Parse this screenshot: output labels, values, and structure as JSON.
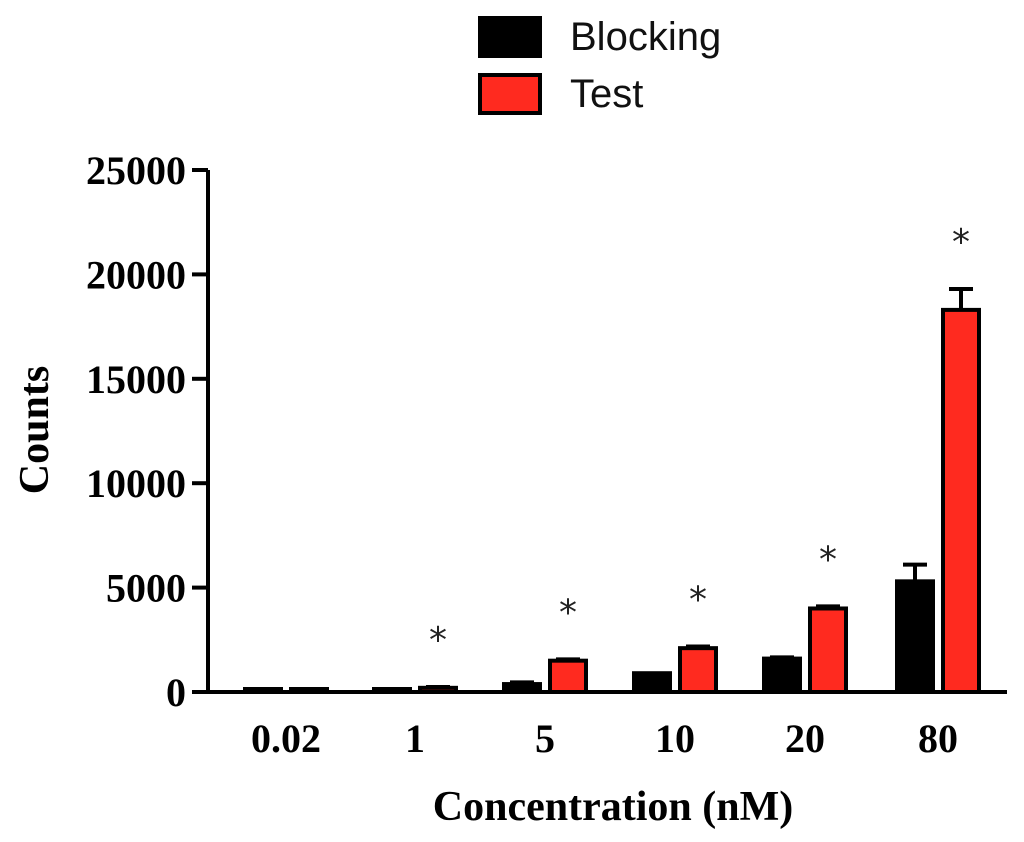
{
  "chart_data": {
    "type": "bar",
    "title": "",
    "xlabel": "Concentration (nM)",
    "ylabel": "Counts",
    "categories": [
      "0.02",
      "1",
      "5",
      "10",
      "20",
      "80"
    ],
    "ylim": [
      0,
      25000
    ],
    "yticks": [
      0,
      5000,
      10000,
      15000,
      20000,
      25000
    ],
    "legend_position": "top-center",
    "series": [
      {
        "name": "Blocking",
        "color": "#000000",
        "values": [
          40,
          60,
          380,
          900,
          1600,
          5300
        ],
        "errors": [
          0,
          0,
          80,
          0,
          60,
          800
        ]
      },
      {
        "name": "Test",
        "color": "#ff2a1f",
        "values": [
          50,
          200,
          1500,
          2100,
          4000,
          18300
        ],
        "errors": [
          0,
          40,
          60,
          80,
          100,
          1000
        ]
      }
    ],
    "annotations": [
      {
        "category": "1",
        "series": "Test",
        "text": "*"
      },
      {
        "category": "5",
        "series": "Test",
        "text": "*"
      },
      {
        "category": "10",
        "series": "Test",
        "text": "*"
      },
      {
        "category": "20",
        "series": "Test",
        "text": "*"
      },
      {
        "category": "80",
        "series": "Test",
        "text": "*"
      }
    ]
  }
}
